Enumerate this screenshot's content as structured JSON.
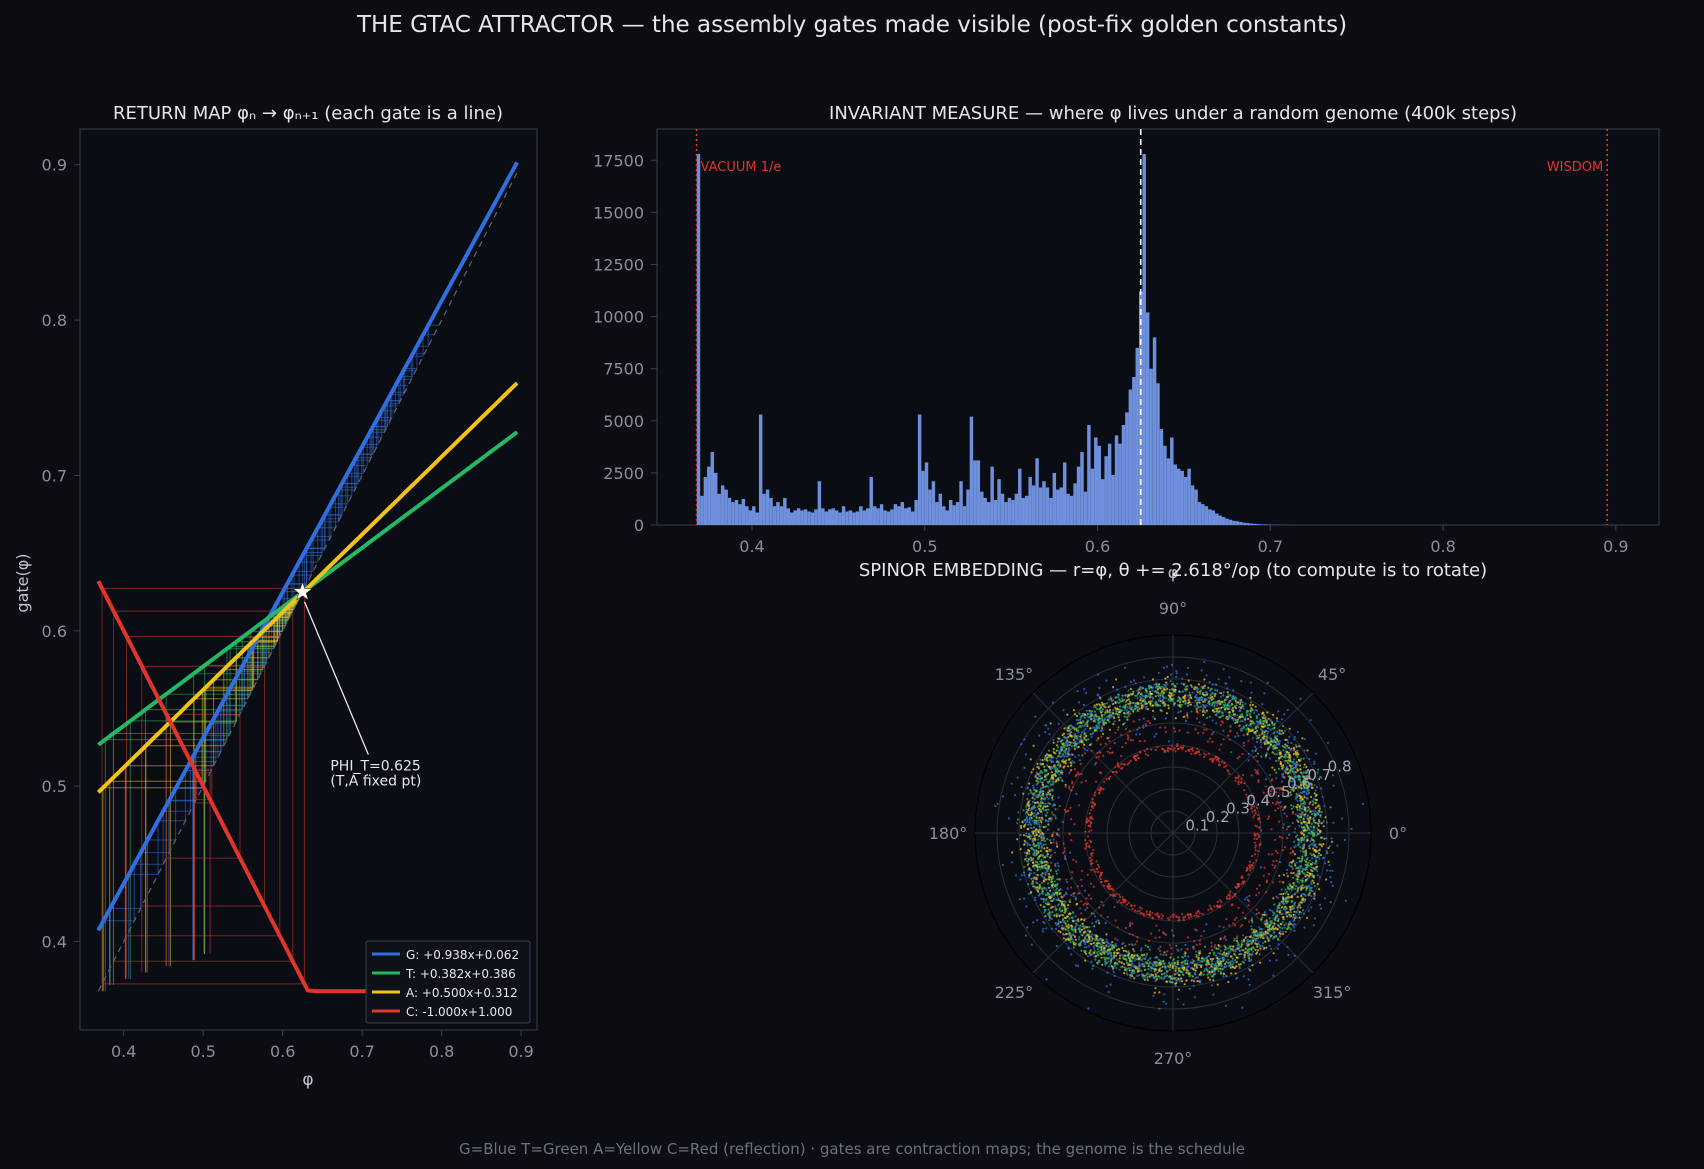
{
  "figure": {
    "suptitle": "THE GTAC ATTRACTOR — the assembly gates made visible  (post-fix golden constants)",
    "footer": "G=Blue  T=Green  A=Yellow  C=Red (reflection) · gates are contraction maps; the genome is the schedule",
    "colors": {
      "background": "#0b0d13",
      "axes_bg": "#0a0d14",
      "spine": "#3a404d",
      "tick": "#8a8f99",
      "text": "#e6e6e6",
      "G": "#2f6fdf",
      "T": "#25b864",
      "A": "#f2c21b",
      "C": "#e0352b",
      "hist": "#6e8fdc",
      "marker": "#e0352b"
    }
  },
  "chart_data": [
    {
      "type": "line",
      "title": "RETURN MAP  φₙ → φₙ₊₁  (each gate is a line)",
      "xlabel": "φ",
      "ylabel": "gate(φ)",
      "xlim": [
        0.345,
        0.92
      ],
      "ylim": [
        0.343,
        0.923
      ],
      "xticks": [
        "0.4",
        "0.5",
        "0.6",
        "0.7",
        "0.8",
        "0.9"
      ],
      "yticks": [
        "0.4",
        "0.5",
        "0.6",
        "0.7",
        "0.8",
        "0.9"
      ],
      "grid": false,
      "legend_loc": "lower right",
      "domain": [
        0.368,
        0.895
      ],
      "series": [
        {
          "name": "G: +0.938x+0.062",
          "gate": "G",
          "slope": 0.938,
          "intercept": 0.062,
          "color": "#2f6fdf"
        },
        {
          "name": "T: +0.382x+0.386",
          "gate": "T",
          "slope": 0.382,
          "intercept": 0.386,
          "color": "#25b864"
        },
        {
          "name": "A: +0.500x+0.312",
          "gate": "A",
          "slope": 0.5,
          "intercept": 0.312,
          "color": "#f2c21b"
        },
        {
          "name": "C: -1.000x+1.000",
          "gate": "C",
          "slope": -1.0,
          "intercept": 1.0,
          "clip_min": 0.368,
          "color": "#e0352b"
        }
      ],
      "identity_line": true,
      "fixed_point": {
        "x": 0.625,
        "y": 0.625,
        "label_line1": "PHI_T=0.625",
        "label_line2": "(T,A fixed pt)",
        "label_x": 0.66,
        "label_y": 0.51
      }
    },
    {
      "type": "bar",
      "title": "INVARIANT MEASURE — where φ lives under a random genome (400k steps)",
      "xlabel": "φ",
      "xlim": [
        0.345,
        0.925
      ],
      "ylim": [
        0,
        19000
      ],
      "xticks": [
        "0.4",
        "0.5",
        "0.6",
        "0.7",
        "0.8",
        "0.9"
      ],
      "yticks": [
        "0",
        "2500",
        "5000",
        "7500",
        "10000",
        "12500",
        "15000",
        "17500"
      ],
      "markers": [
        {
          "x": 0.3679,
          "label": "VACUUM 1/e",
          "style": "dotted",
          "color": "#e0352b"
        },
        {
          "x": 0.895,
          "label": "WISDOM",
          "style": "dotted",
          "color": "#e0352b"
        },
        {
          "x": 0.625,
          "label": "",
          "style": "dashed",
          "color": "#ffffff"
        }
      ],
      "bins": [
        [
          0.368,
          17800
        ],
        [
          0.37,
          1400
        ],
        [
          0.372,
          2300
        ],
        [
          0.374,
          2800
        ],
        [
          0.376,
          3500
        ],
        [
          0.378,
          2500
        ],
        [
          0.38,
          1500
        ],
        [
          0.382,
          1900
        ],
        [
          0.384,
          1700
        ],
        [
          0.386,
          1300
        ],
        [
          0.388,
          1100
        ],
        [
          0.39,
          1200
        ],
        [
          0.392,
          1000
        ],
        [
          0.394,
          1250
        ],
        [
          0.396,
          900
        ],
        [
          0.398,
          700
        ],
        [
          0.4,
          900
        ],
        [
          0.402,
          600
        ],
        [
          0.404,
          5300
        ],
        [
          0.406,
          1500
        ],
        [
          0.408,
          1700
        ],
        [
          0.41,
          1300
        ],
        [
          0.412,
          900
        ],
        [
          0.414,
          1100
        ],
        [
          0.416,
          900
        ],
        [
          0.418,
          1300
        ],
        [
          0.42,
          800
        ],
        [
          0.422,
          600
        ],
        [
          0.424,
          700
        ],
        [
          0.426,
          800
        ],
        [
          0.428,
          700
        ],
        [
          0.43,
          750
        ],
        [
          0.432,
          650
        ],
        [
          0.434,
          600
        ],
        [
          0.436,
          750
        ],
        [
          0.438,
          2100
        ],
        [
          0.44,
          800
        ],
        [
          0.442,
          650
        ],
        [
          0.444,
          750
        ],
        [
          0.446,
          800
        ],
        [
          0.448,
          700
        ],
        [
          0.45,
          600
        ],
        [
          0.452,
          900
        ],
        [
          0.454,
          650
        ],
        [
          0.456,
          700
        ],
        [
          0.458,
          600
        ],
        [
          0.46,
          650
        ],
        [
          0.462,
          900
        ],
        [
          0.464,
          700
        ],
        [
          0.466,
          800
        ],
        [
          0.468,
          2300
        ],
        [
          0.47,
          900
        ],
        [
          0.472,
          800
        ],
        [
          0.474,
          1000
        ],
        [
          0.476,
          700
        ],
        [
          0.478,
          650
        ],
        [
          0.48,
          750
        ],
        [
          0.482,
          1000
        ],
        [
          0.484,
          900
        ],
        [
          0.486,
          1100
        ],
        [
          0.488,
          800
        ],
        [
          0.49,
          850
        ],
        [
          0.492,
          650
        ],
        [
          0.494,
          1200
        ],
        [
          0.496,
          5300
        ],
        [
          0.498,
          2600
        ],
        [
          0.5,
          3000
        ],
        [
          0.502,
          1700
        ],
        [
          0.504,
          2100
        ],
        [
          0.506,
          1100
        ],
        [
          0.508,
          1500
        ],
        [
          0.51,
          900
        ],
        [
          0.512,
          700
        ],
        [
          0.514,
          1200
        ],
        [
          0.516,
          950
        ],
        [
          0.518,
          1100
        ],
        [
          0.52,
          2100
        ],
        [
          0.522,
          900
        ],
        [
          0.524,
          1700
        ],
        [
          0.526,
          5200
        ],
        [
          0.528,
          3100
        ],
        [
          0.53,
          3100
        ],
        [
          0.532,
          1600
        ],
        [
          0.534,
          1300
        ],
        [
          0.536,
          1100
        ],
        [
          0.538,
          2800
        ],
        [
          0.54,
          1200
        ],
        [
          0.542,
          2200
        ],
        [
          0.544,
          1500
        ],
        [
          0.546,
          1100
        ],
        [
          0.548,
          1300
        ],
        [
          0.55,
          1200
        ],
        [
          0.552,
          1500
        ],
        [
          0.554,
          2700
        ],
        [
          0.556,
          1300
        ],
        [
          0.558,
          1400
        ],
        [
          0.56,
          2300
        ],
        [
          0.562,
          1900
        ],
        [
          0.564,
          3200
        ],
        [
          0.566,
          1800
        ],
        [
          0.568,
          2100
        ],
        [
          0.57,
          1800
        ],
        [
          0.572,
          1300
        ],
        [
          0.574,
          2500
        ],
        [
          0.576,
          1700
        ],
        [
          0.578,
          1800
        ],
        [
          0.58,
          3000
        ],
        [
          0.582,
          1500
        ],
        [
          0.584,
          1400
        ],
        [
          0.586,
          2000
        ],
        [
          0.588,
          2800
        ],
        [
          0.59,
          3500
        ],
        [
          0.592,
          1600
        ],
        [
          0.594,
          4800
        ],
        [
          0.596,
          2700
        ],
        [
          0.598,
          4200
        ],
        [
          0.6,
          3800
        ],
        [
          0.602,
          2200
        ],
        [
          0.604,
          3300
        ],
        [
          0.606,
          3900
        ],
        [
          0.608,
          2400
        ],
        [
          0.61,
          4300
        ],
        [
          0.612,
          3900
        ],
        [
          0.614,
          4800
        ],
        [
          0.616,
          5400
        ],
        [
          0.618,
          6500
        ],
        [
          0.62,
          7100
        ],
        [
          0.622,
          8500
        ],
        [
          0.624,
          11200
        ],
        [
          0.626,
          17800
        ],
        [
          0.628,
          10200
        ],
        [
          0.63,
          7500
        ],
        [
          0.632,
          9000
        ],
        [
          0.634,
          6800
        ],
        [
          0.636,
          4600
        ],
        [
          0.638,
          3800
        ],
        [
          0.64,
          3200
        ],
        [
          0.642,
          4200
        ],
        [
          0.644,
          2900
        ],
        [
          0.646,
          2700
        ],
        [
          0.648,
          2600
        ],
        [
          0.65,
          2300
        ],
        [
          0.652,
          2700
        ],
        [
          0.654,
          1900
        ],
        [
          0.656,
          1700
        ],
        [
          0.658,
          1100
        ],
        [
          0.66,
          1000
        ],
        [
          0.662,
          900
        ],
        [
          0.664,
          750
        ],
        [
          0.666,
          700
        ],
        [
          0.668,
          550
        ],
        [
          0.67,
          450
        ],
        [
          0.672,
          380
        ],
        [
          0.674,
          300
        ],
        [
          0.676,
          250
        ],
        [
          0.678,
          200
        ],
        [
          0.68,
          180
        ],
        [
          0.682,
          140
        ],
        [
          0.684,
          110
        ],
        [
          0.686,
          90
        ],
        [
          0.688,
          70
        ],
        [
          0.69,
          55
        ],
        [
          0.692,
          40
        ],
        [
          0.694,
          30
        ],
        [
          0.696,
          25
        ],
        [
          0.698,
          18
        ],
        [
          0.7,
          14
        ],
        [
          0.702,
          10
        ],
        [
          0.704,
          8
        ],
        [
          0.706,
          6
        ],
        [
          0.708,
          4
        ],
        [
          0.71,
          3
        ]
      ]
    },
    {
      "type": "scatter",
      "title": "SPINOR EMBEDDING — r=φ, θ += 2.618°/op  (to compute is to rotate)",
      "projection": "polar",
      "rlim": [
        0,
        0.9
      ],
      "rticks": [
        "0.1",
        "0.2",
        "0.3",
        "0.4",
        "0.5",
        "0.6",
        "0.7",
        "0.8"
      ],
      "theta_ticks": [
        "0°",
        "45°",
        "90°",
        "135°",
        "180°",
        "225°",
        "270°",
        "315°"
      ],
      "theta_step_deg": 2.618,
      "series": [
        {
          "gate": "G",
          "color": "#2f6fdf",
          "r_range": [
            0.38,
            0.9
          ],
          "r_mode": 0.63
        },
        {
          "gate": "T",
          "color": "#25b864",
          "r_range": [
            0.5,
            0.73
          ],
          "r_mode": 0.63
        },
        {
          "gate": "A",
          "color": "#f2c21b",
          "r_range": [
            0.49,
            0.76
          ],
          "r_mode": 0.63
        },
        {
          "gate": "C",
          "color": "#e0352b",
          "r_range": [
            0.37,
            0.63
          ],
          "r_mode": 0.38
        }
      ]
    }
  ]
}
